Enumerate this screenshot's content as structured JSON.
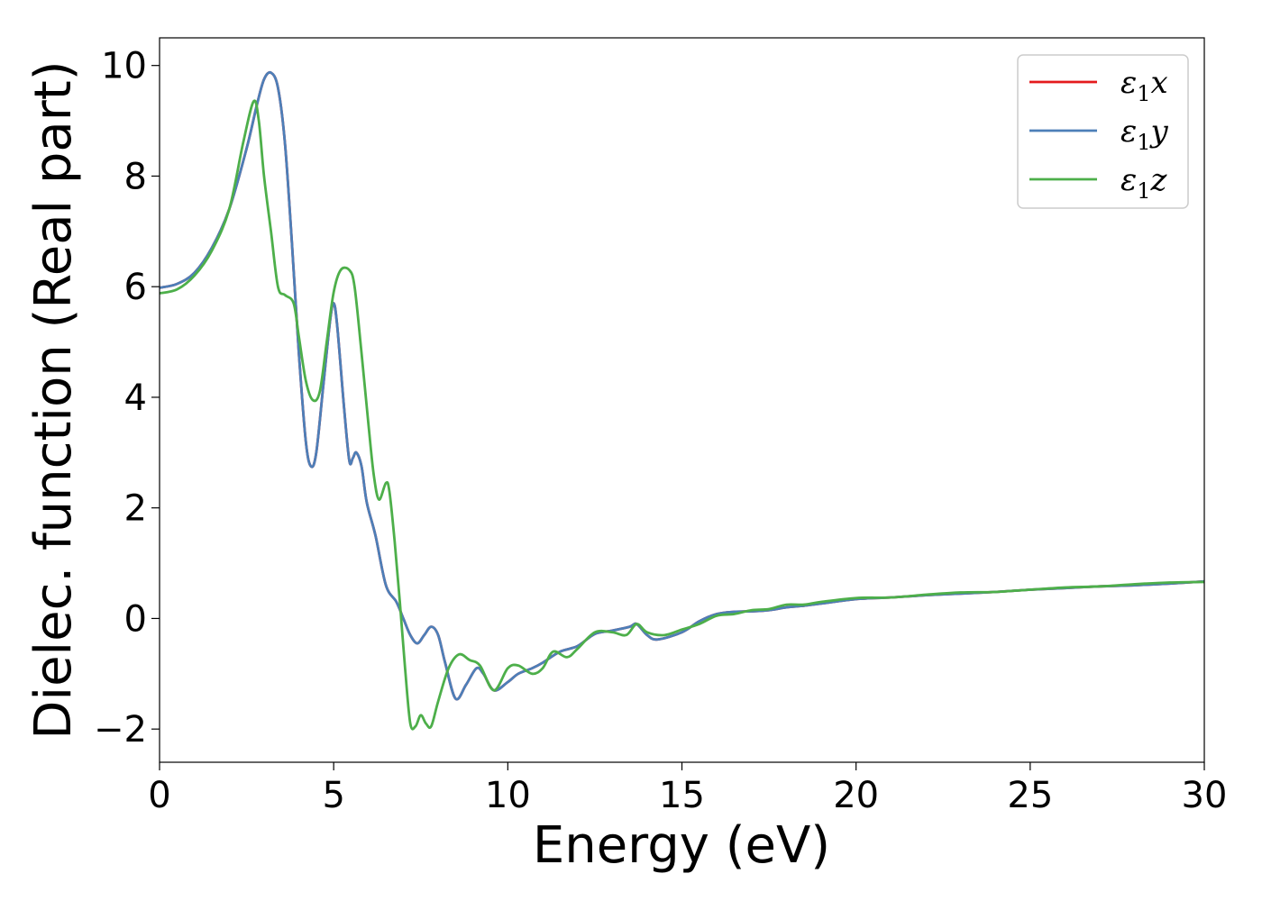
{
  "chart_data": {
    "type": "line",
    "title": "",
    "xlabel": "Energy (eV)",
    "ylabel": "Dielec. function (Real part)",
    "xlim": [
      0,
      30
    ],
    "ylim": [
      -2.6,
      10.5
    ],
    "xticks": [
      0,
      5,
      10,
      15,
      20,
      25,
      30
    ],
    "xtick_labels": [
      "0",
      "5",
      "10",
      "15",
      "20",
      "25",
      "30"
    ],
    "yticks": [
      -2,
      0,
      2,
      4,
      6,
      8,
      10
    ],
    "ytick_labels": [
      "−2",
      "0",
      "2",
      "4",
      "6",
      "8",
      "10"
    ],
    "grid": false,
    "legend_position": "top-right",
    "series": [
      {
        "name": "ε₁x",
        "label_main": "ε",
        "label_sub": "1",
        "label_tail": "x",
        "color": "#e41a1c",
        "points": [
          [
            0,
            5.98
          ],
          [
            0.5,
            6.05
          ],
          [
            1,
            6.25
          ],
          [
            1.5,
            6.7
          ],
          [
            2,
            7.4
          ],
          [
            2.5,
            8.5
          ],
          [
            2.8,
            9.3
          ],
          [
            3,
            9.75
          ],
          [
            3.2,
            9.87
          ],
          [
            3.4,
            9.6
          ],
          [
            3.6,
            8.6
          ],
          [
            3.8,
            6.8
          ],
          [
            4,
            4.8
          ],
          [
            4.2,
            3.2
          ],
          [
            4.35,
            2.75
          ],
          [
            4.5,
            3.0
          ],
          [
            4.7,
            4.2
          ],
          [
            4.9,
            5.4
          ],
          [
            5,
            5.7
          ],
          [
            5.1,
            5.3
          ],
          [
            5.3,
            3.8
          ],
          [
            5.45,
            2.85
          ],
          [
            5.55,
            2.9
          ],
          [
            5.65,
            3.0
          ],
          [
            5.8,
            2.75
          ],
          [
            5.95,
            2.1
          ],
          [
            6.2,
            1.5
          ],
          [
            6.5,
            0.6
          ],
          [
            6.8,
            0.3
          ],
          [
            7,
            0.0
          ],
          [
            7.2,
            -0.3
          ],
          [
            7.4,
            -0.45
          ],
          [
            7.6,
            -0.3
          ],
          [
            7.8,
            -0.15
          ],
          [
            8,
            -0.3
          ],
          [
            8.2,
            -0.8
          ],
          [
            8.5,
            -1.45
          ],
          [
            8.8,
            -1.2
          ],
          [
            9.1,
            -0.9
          ],
          [
            9.3,
            -1.0
          ],
          [
            9.6,
            -1.3
          ],
          [
            10,
            -1.15
          ],
          [
            10.3,
            -1.0
          ],
          [
            10.7,
            -0.9
          ],
          [
            11,
            -0.8
          ],
          [
            11.5,
            -0.6
          ],
          [
            12,
            -0.5
          ],
          [
            12.5,
            -0.28
          ],
          [
            13,
            -0.22
          ],
          [
            13.5,
            -0.15
          ],
          [
            13.7,
            -0.1
          ],
          [
            14,
            -0.3
          ],
          [
            14.3,
            -0.38
          ],
          [
            15,
            -0.25
          ],
          [
            15.5,
            -0.05
          ],
          [
            16,
            0.08
          ],
          [
            16.5,
            0.12
          ],
          [
            17,
            0.13
          ],
          [
            17.5,
            0.15
          ],
          [
            18,
            0.2
          ],
          [
            18.5,
            0.23
          ],
          [
            19,
            0.27
          ],
          [
            20,
            0.35
          ],
          [
            21,
            0.38
          ],
          [
            22,
            0.42
          ],
          [
            23,
            0.45
          ],
          [
            24,
            0.48
          ],
          [
            25,
            0.52
          ],
          [
            26,
            0.55
          ],
          [
            27,
            0.58
          ],
          [
            28,
            0.6
          ],
          [
            29,
            0.63
          ],
          [
            30,
            0.67
          ]
        ]
      },
      {
        "name": "ε₁y",
        "label_main": "ε",
        "label_sub": "1",
        "label_tail": "y",
        "color": "#4d7fb8",
        "points": [
          [
            0,
            5.98
          ],
          [
            0.5,
            6.05
          ],
          [
            1,
            6.25
          ],
          [
            1.5,
            6.7
          ],
          [
            2,
            7.4
          ],
          [
            2.5,
            8.5
          ],
          [
            2.8,
            9.3
          ],
          [
            3,
            9.75
          ],
          [
            3.2,
            9.87
          ],
          [
            3.4,
            9.6
          ],
          [
            3.6,
            8.6
          ],
          [
            3.8,
            6.8
          ],
          [
            4,
            4.8
          ],
          [
            4.2,
            3.2
          ],
          [
            4.35,
            2.75
          ],
          [
            4.5,
            3.0
          ],
          [
            4.7,
            4.2
          ],
          [
            4.9,
            5.4
          ],
          [
            5,
            5.7
          ],
          [
            5.1,
            5.3
          ],
          [
            5.3,
            3.8
          ],
          [
            5.45,
            2.85
          ],
          [
            5.55,
            2.9
          ],
          [
            5.65,
            3.0
          ],
          [
            5.8,
            2.75
          ],
          [
            5.95,
            2.1
          ],
          [
            6.2,
            1.5
          ],
          [
            6.5,
            0.6
          ],
          [
            6.8,
            0.3
          ],
          [
            7,
            0.0
          ],
          [
            7.2,
            -0.3
          ],
          [
            7.4,
            -0.45
          ],
          [
            7.6,
            -0.3
          ],
          [
            7.8,
            -0.15
          ],
          [
            8,
            -0.3
          ],
          [
            8.2,
            -0.8
          ],
          [
            8.5,
            -1.45
          ],
          [
            8.8,
            -1.2
          ],
          [
            9.1,
            -0.9
          ],
          [
            9.3,
            -1.0
          ],
          [
            9.6,
            -1.3
          ],
          [
            10,
            -1.15
          ],
          [
            10.3,
            -1.0
          ],
          [
            10.7,
            -0.9
          ],
          [
            11,
            -0.8
          ],
          [
            11.5,
            -0.6
          ],
          [
            12,
            -0.5
          ],
          [
            12.5,
            -0.28
          ],
          [
            13,
            -0.22
          ],
          [
            13.5,
            -0.15
          ],
          [
            13.7,
            -0.1
          ],
          [
            14,
            -0.3
          ],
          [
            14.3,
            -0.38
          ],
          [
            15,
            -0.25
          ],
          [
            15.5,
            -0.05
          ],
          [
            16,
            0.08
          ],
          [
            16.5,
            0.12
          ],
          [
            17,
            0.13
          ],
          [
            17.5,
            0.15
          ],
          [
            18,
            0.2
          ],
          [
            18.5,
            0.23
          ],
          [
            19,
            0.27
          ],
          [
            20,
            0.35
          ],
          [
            21,
            0.38
          ],
          [
            22,
            0.42
          ],
          [
            23,
            0.45
          ],
          [
            24,
            0.48
          ],
          [
            25,
            0.52
          ],
          [
            26,
            0.55
          ],
          [
            27,
            0.58
          ],
          [
            28,
            0.6
          ],
          [
            29,
            0.63
          ],
          [
            30,
            0.67
          ]
        ]
      },
      {
        "name": "ε₁z",
        "label_main": "ε",
        "label_sub": "1",
        "label_tail": "z",
        "color": "#4daf4a",
        "points": [
          [
            0,
            5.88
          ],
          [
            0.5,
            5.95
          ],
          [
            1,
            6.2
          ],
          [
            1.5,
            6.65
          ],
          [
            2,
            7.4
          ],
          [
            2.4,
            8.6
          ],
          [
            2.7,
            9.35
          ],
          [
            2.85,
            9.0
          ],
          [
            3,
            8.0
          ],
          [
            3.2,
            7.0
          ],
          [
            3.4,
            6.0
          ],
          [
            3.6,
            5.85
          ],
          [
            3.85,
            5.7
          ],
          [
            4,
            5.1
          ],
          [
            4.2,
            4.3
          ],
          [
            4.4,
            3.95
          ],
          [
            4.6,
            4.1
          ],
          [
            4.8,
            5.0
          ],
          [
            5,
            5.9
          ],
          [
            5.2,
            6.3
          ],
          [
            5.45,
            6.3
          ],
          [
            5.6,
            6.0
          ],
          [
            5.8,
            4.8
          ],
          [
            6,
            3.5
          ],
          [
            6.15,
            2.6
          ],
          [
            6.3,
            2.15
          ],
          [
            6.5,
            2.45
          ],
          [
            6.6,
            2.3
          ],
          [
            6.75,
            1.4
          ],
          [
            6.9,
            0.3
          ],
          [
            7.05,
            -0.9
          ],
          [
            7.2,
            -1.9
          ],
          [
            7.35,
            -1.95
          ],
          [
            7.5,
            -1.75
          ],
          [
            7.65,
            -1.9
          ],
          [
            7.8,
            -1.95
          ],
          [
            8,
            -1.5
          ],
          [
            8.3,
            -0.9
          ],
          [
            8.6,
            -0.65
          ],
          [
            8.9,
            -0.75
          ],
          [
            9.2,
            -0.85
          ],
          [
            9.6,
            -1.3
          ],
          [
            10,
            -0.9
          ],
          [
            10.3,
            -0.85
          ],
          [
            10.7,
            -1.0
          ],
          [
            11,
            -0.9
          ],
          [
            11.3,
            -0.6
          ],
          [
            11.7,
            -0.7
          ],
          [
            12,
            -0.55
          ],
          [
            12.5,
            -0.25
          ],
          [
            13,
            -0.25
          ],
          [
            13.4,
            -0.3
          ],
          [
            13.7,
            -0.1
          ],
          [
            14,
            -0.25
          ],
          [
            14.5,
            -0.3
          ],
          [
            15,
            -0.2
          ],
          [
            15.5,
            -0.1
          ],
          [
            16,
            0.05
          ],
          [
            16.5,
            0.08
          ],
          [
            17,
            0.15
          ],
          [
            17.5,
            0.17
          ],
          [
            18,
            0.25
          ],
          [
            18.5,
            0.25
          ],
          [
            19,
            0.3
          ],
          [
            20,
            0.37
          ],
          [
            21,
            0.38
          ],
          [
            22,
            0.43
          ],
          [
            23,
            0.47
          ],
          [
            24,
            0.48
          ],
          [
            25,
            0.52
          ],
          [
            26,
            0.56
          ],
          [
            27,
            0.58
          ],
          [
            28,
            0.62
          ],
          [
            29,
            0.65
          ],
          [
            30,
            0.66
          ]
        ]
      }
    ]
  }
}
